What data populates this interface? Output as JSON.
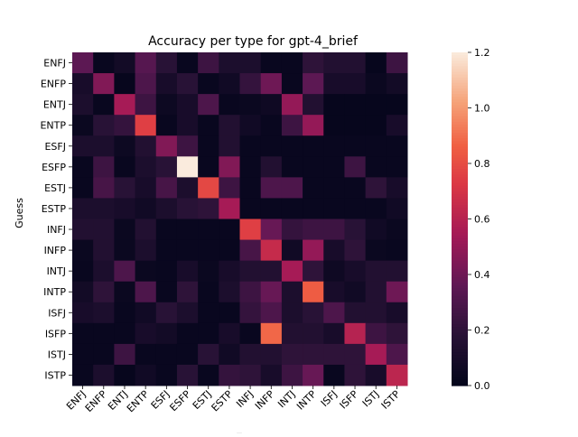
{
  "chart_data": {
    "type": "heatmap",
    "title": "Accuracy per type for gpt-4_brief",
    "xlabel": "_",
    "ylabel": "Guess",
    "categories": [
      "ENFJ",
      "ENFP",
      "ENTJ",
      "ENTP",
      "ESFJ",
      "ESFP",
      "ESTJ",
      "ESTP",
      "INFJ",
      "INFP",
      "INTJ",
      "INTP",
      "ISFJ",
      "ISFP",
      "ISTJ",
      "ISTP"
    ],
    "rows": [
      "ENFJ",
      "ENFP",
      "ENTJ",
      "ENTP",
      "ESFJ",
      "ESFP",
      "ESTJ",
      "ESTP",
      "INFJ",
      "INFP",
      "INTJ",
      "INTP",
      "ISFJ",
      "ISFP",
      "ISTJ",
      "ISTP"
    ],
    "values": [
      [
        0.35,
        0.03,
        0.08,
        0.33,
        0.18,
        0.03,
        0.25,
        0.12,
        0.12,
        0.03,
        0.03,
        0.2,
        0.15,
        0.15,
        0.02,
        0.25
      ],
      [
        0.1,
        0.45,
        0.02,
        0.3,
        0.1,
        0.18,
        0.03,
        0.07,
        0.22,
        0.4,
        0.03,
        0.35,
        0.1,
        0.1,
        0.04,
        0.08
      ],
      [
        0.12,
        0.03,
        0.55,
        0.25,
        0.05,
        0.1,
        0.3,
        0.03,
        0.04,
        0.06,
        0.5,
        0.15,
        0.02,
        0.02,
        0.02,
        0.02
      ],
      [
        0.04,
        0.18,
        0.22,
        0.75,
        0.03,
        0.1,
        0.03,
        0.15,
        0.07,
        0.03,
        0.25,
        0.5,
        0.02,
        0.02,
        0.02,
        0.1
      ],
      [
        0.12,
        0.12,
        0.05,
        0.15,
        0.45,
        0.25,
        0.03,
        0.15,
        0.03,
        0.03,
        0.03,
        0.03,
        0.03,
        0.03,
        0.03,
        0.03
      ],
      [
        0.03,
        0.25,
        0.03,
        0.12,
        0.18,
        1.2,
        0.03,
        0.45,
        0.03,
        0.15,
        0.03,
        0.03,
        0.03,
        0.25,
        0.03,
        0.03
      ],
      [
        0.03,
        0.28,
        0.18,
        0.1,
        0.28,
        0.12,
        0.78,
        0.25,
        0.03,
        0.3,
        0.3,
        0.03,
        0.03,
        0.03,
        0.2,
        0.1
      ],
      [
        0.12,
        0.12,
        0.1,
        0.07,
        0.12,
        0.18,
        0.2,
        0.55,
        0.03,
        0.03,
        0.03,
        0.03,
        0.03,
        0.03,
        0.03,
        0.07
      ],
      [
        0.15,
        0.15,
        0.04,
        0.15,
        0.03,
        0.03,
        0.03,
        0.03,
        0.75,
        0.38,
        0.22,
        0.25,
        0.25,
        0.18,
        0.07,
        0.04
      ],
      [
        0.04,
        0.15,
        0.04,
        0.12,
        0.03,
        0.03,
        0.03,
        0.03,
        0.28,
        0.65,
        0.07,
        0.5,
        0.1,
        0.2,
        0.04,
        0.03
      ],
      [
        0.03,
        0.12,
        0.3,
        0.04,
        0.03,
        0.1,
        0.04,
        0.1,
        0.15,
        0.15,
        0.55,
        0.2,
        0.06,
        0.1,
        0.15,
        0.15
      ],
      [
        0.08,
        0.2,
        0.04,
        0.3,
        0.03,
        0.2,
        0.03,
        0.12,
        0.25,
        0.38,
        0.12,
        0.85,
        0.1,
        0.07,
        0.15,
        0.4
      ],
      [
        0.1,
        0.12,
        0.03,
        0.07,
        0.18,
        0.12,
        0.03,
        0.03,
        0.22,
        0.3,
        0.12,
        0.18,
        0.3,
        0.15,
        0.15,
        0.1
      ],
      [
        0.03,
        0.03,
        0.03,
        0.1,
        0.08,
        0.03,
        0.03,
        0.1,
        0.03,
        0.88,
        0.15,
        0.15,
        0.1,
        0.6,
        0.25,
        0.2
      ],
      [
        0.03,
        0.03,
        0.25,
        0.03,
        0.03,
        0.03,
        0.18,
        0.07,
        0.15,
        0.15,
        0.2,
        0.2,
        0.2,
        0.2,
        0.55,
        0.3
      ],
      [
        0.03,
        0.12,
        0.02,
        0.07,
        0.03,
        0.18,
        0.03,
        0.22,
        0.2,
        0.1,
        0.25,
        0.38,
        0.03,
        0.2,
        0.1,
        0.62
      ]
    ],
    "colorbar": {
      "min": 0.0,
      "max": 1.2,
      "ticks": [
        "0.0",
        "0.2",
        "0.4",
        "0.6",
        "0.8",
        "1.0",
        "1.2"
      ]
    },
    "colormap": "rocket"
  }
}
